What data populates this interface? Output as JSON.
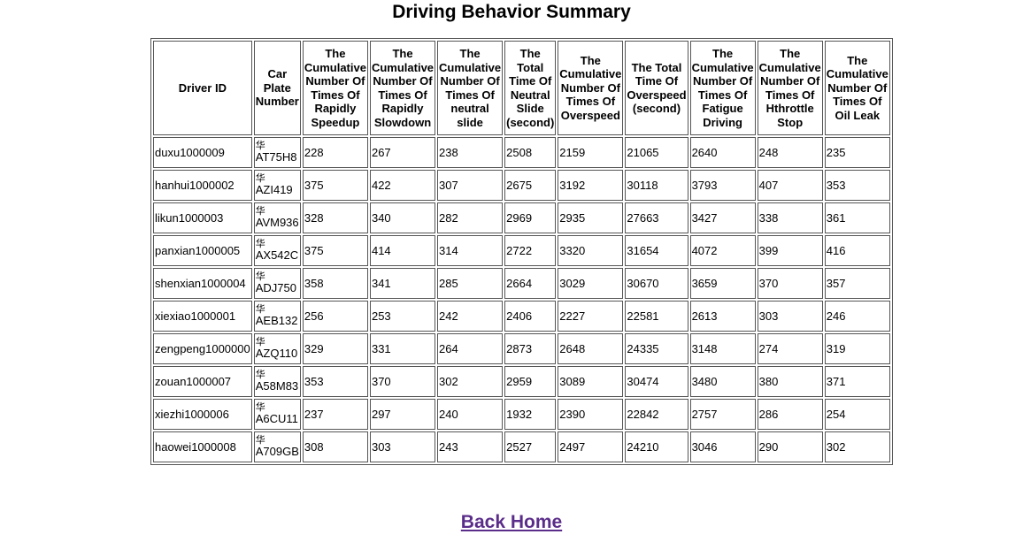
{
  "page": {
    "title": "Driving Behavior Summary",
    "back_link": "Back Home"
  },
  "table": {
    "headers": [
      [
        "Driver ID"
      ],
      [
        "Car",
        "Plate",
        "Number"
      ],
      [
        "The",
        "Cumulative",
        "Number Of",
        "Times Of",
        "Rapidly",
        "Speedup"
      ],
      [
        "The",
        "Cumulative",
        "Number Of",
        "Times Of",
        "Rapidly",
        "Slowdown"
      ],
      [
        "The",
        "Cumulative",
        "Number Of",
        "Times Of",
        "neutral",
        "slide"
      ],
      [
        "The",
        "Total",
        "Time Of",
        "Neutral",
        "Slide",
        "(second)"
      ],
      [
        "The",
        "Cumulative",
        "Number Of",
        "Times Of",
        "Overspeed"
      ],
      [
        "The Total",
        "Time Of",
        "Overspeed",
        "(second)"
      ],
      [
        "The",
        "Cumulative",
        "Number Of",
        "Times Of",
        "Fatigue",
        "Driving"
      ],
      [
        "The",
        "Cumulative",
        "Number Of",
        "Times Of",
        "Hthrottle",
        "Stop"
      ],
      [
        "The",
        "Cumulative",
        "Number Of",
        "Times Of",
        "Oil Leak"
      ]
    ],
    "rows": [
      {
        "driver_id": "duxu1000009",
        "plate_prefix": "华",
        "plate": "AT75H8",
        "values": [
          "228",
          "267",
          "238",
          "2508",
          "2159",
          "21065",
          "2640",
          "248",
          "235"
        ]
      },
      {
        "driver_id": "hanhui1000002",
        "plate_prefix": "华",
        "plate": "AZI419",
        "values": [
          "375",
          "422",
          "307",
          "2675",
          "3192",
          "30118",
          "3793",
          "407",
          "353"
        ]
      },
      {
        "driver_id": "likun1000003",
        "plate_prefix": "华",
        "plate": "AVM936",
        "values": [
          "328",
          "340",
          "282",
          "2969",
          "2935",
          "27663",
          "3427",
          "338",
          "361"
        ]
      },
      {
        "driver_id": "panxian1000005",
        "plate_prefix": "华",
        "plate": "AX542C",
        "values": [
          "375",
          "414",
          "314",
          "2722",
          "3320",
          "31654",
          "4072",
          "399",
          "416"
        ]
      },
      {
        "driver_id": "shenxian1000004",
        "plate_prefix": "华",
        "plate": "ADJ750",
        "values": [
          "358",
          "341",
          "285",
          "2664",
          "3029",
          "30670",
          "3659",
          "370",
          "357"
        ]
      },
      {
        "driver_id": "xiexiao1000001",
        "plate_prefix": "华",
        "plate": "AEB132",
        "values": [
          "256",
          "253",
          "242",
          "2406",
          "2227",
          "22581",
          "2613",
          "303",
          "246"
        ]
      },
      {
        "driver_id": "zengpeng1000000",
        "plate_prefix": "华",
        "plate": "AZQ110",
        "values": [
          "329",
          "331",
          "264",
          "2873",
          "2648",
          "24335",
          "3148",
          "274",
          "319"
        ]
      },
      {
        "driver_id": "zouan1000007",
        "plate_prefix": "华",
        "plate": "A58M83",
        "values": [
          "353",
          "370",
          "302",
          "2959",
          "3089",
          "30474",
          "3480",
          "380",
          "371"
        ]
      },
      {
        "driver_id": "xiezhi1000006",
        "plate_prefix": "华",
        "plate": "A6CU11",
        "values": [
          "237",
          "297",
          "240",
          "1932",
          "2390",
          "22842",
          "2757",
          "286",
          "254"
        ]
      },
      {
        "driver_id": "haowei1000008",
        "plate_prefix": "华",
        "plate": "A709GB",
        "values": [
          "308",
          "303",
          "243",
          "2527",
          "2497",
          "24210",
          "3046",
          "290",
          "302"
        ]
      }
    ]
  }
}
